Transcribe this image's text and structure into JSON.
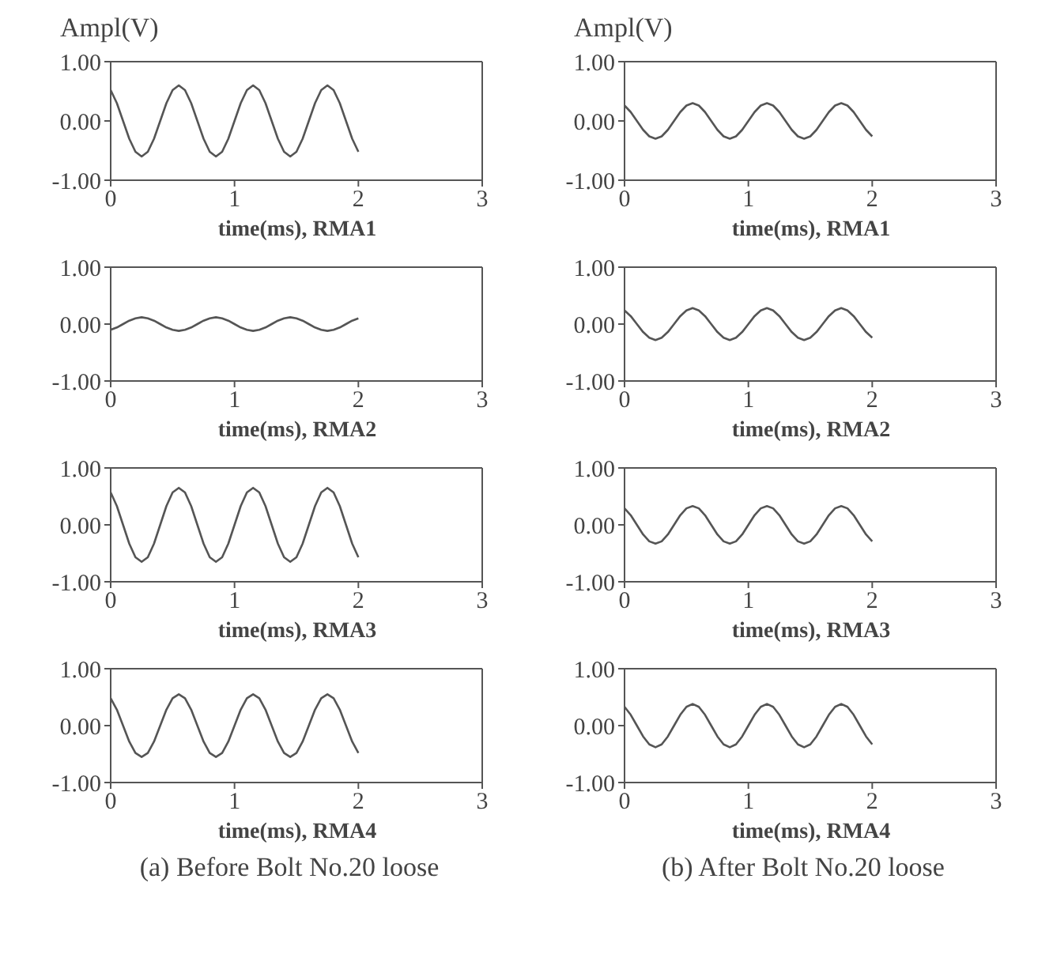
{
  "chart_data": [
    {
      "type": "line",
      "ylabel": "Ampl(V)",
      "xlabel": "time(ms), RMA1",
      "xlim": [
        0,
        3
      ],
      "xticks": [
        0,
        1,
        2,
        3
      ],
      "ylim": [
        -1,
        1
      ],
      "yticks": [
        {
          "value": -1,
          "label": "-1.00"
        },
        {
          "value": 0,
          "label": "0.00"
        },
        {
          "value": 1,
          "label": "1.00"
        }
      ],
      "legend": false,
      "x": [
        0,
        0.05,
        0.1,
        0.15,
        0.2,
        0.25,
        0.3,
        0.35,
        0.4,
        0.45,
        0.5,
        0.55,
        0.6,
        0.65,
        0.7,
        0.75,
        0.8,
        0.85,
        0.9,
        0.95,
        1,
        1.05,
        1.1,
        1.15,
        1.2,
        1.25,
        1.3,
        1.35,
        1.4,
        1.45,
        1.5,
        1.55,
        1.6,
        1.65,
        1.7,
        1.75,
        1.8,
        1.85,
        1.9,
        1.95,
        2
      ],
      "series": [
        {
          "color": "#555555",
          "values": [
            0.52,
            0.3,
            0,
            -0.3,
            -0.52,
            -0.6,
            -0.52,
            -0.3,
            0,
            0.3,
            0.52,
            0.6,
            0.52,
            0.3,
            0,
            -0.3,
            -0.52,
            -0.6,
            -0.52,
            -0.3,
            0,
            0.3,
            0.52,
            0.6,
            0.52,
            0.3,
            0,
            -0.3,
            -0.52,
            -0.6,
            -0.52,
            -0.3,
            0,
            0.3,
            0.52,
            0.6,
            0.52,
            0.3,
            0,
            -0.3,
            -0.52
          ]
        }
      ]
    },
    {
      "type": "line",
      "ylabel": "Ampl(V)",
      "xlabel": "time(ms), RMA1",
      "xlim": [
        0,
        3
      ],
      "xticks": [
        0,
        1,
        2,
        3
      ],
      "ylim": [
        -1,
        1
      ],
      "yticks": [
        {
          "value": -1,
          "label": "-1.00"
        },
        {
          "value": 0,
          "label": "0.00"
        },
        {
          "value": 1,
          "label": "1.00"
        }
      ],
      "legend": false,
      "x": [
        0,
        0.05,
        0.1,
        0.15,
        0.2,
        0.25,
        0.3,
        0.35,
        0.4,
        0.45,
        0.5,
        0.55,
        0.6,
        0.65,
        0.7,
        0.75,
        0.8,
        0.85,
        0.9,
        0.95,
        1,
        1.05,
        1.1,
        1.15,
        1.2,
        1.25,
        1.3,
        1.35,
        1.4,
        1.45,
        1.5,
        1.55,
        1.6,
        1.65,
        1.7,
        1.75,
        1.8,
        1.85,
        1.9,
        1.95,
        2
      ],
      "series": [
        {
          "color": "#555555",
          "values": [
            0.26,
            0.15,
            0,
            -0.15,
            -0.26,
            -0.3,
            -0.26,
            -0.15,
            0,
            0.15,
            0.26,
            0.3,
            0.26,
            0.15,
            0,
            -0.15,
            -0.26,
            -0.3,
            -0.26,
            -0.15,
            0,
            0.15,
            0.26,
            0.3,
            0.26,
            0.15,
            0,
            -0.15,
            -0.26,
            -0.3,
            -0.26,
            -0.15,
            0,
            0.15,
            0.26,
            0.3,
            0.26,
            0.15,
            0,
            -0.15,
            -0.26
          ]
        }
      ]
    },
    {
      "type": "line",
      "xlabel": "time(ms), RMA2",
      "xlim": [
        0,
        3
      ],
      "xticks": [
        0,
        1,
        2,
        3
      ],
      "ylim": [
        -1,
        1
      ],
      "yticks": [
        {
          "value": -1,
          "label": "-1.00"
        },
        {
          "value": 0,
          "label": "0.00"
        },
        {
          "value": 1,
          "label": "1.00"
        }
      ],
      "legend": false,
      "x": [
        0,
        0.05,
        0.1,
        0.15,
        0.2,
        0.25,
        0.3,
        0.35,
        0.4,
        0.45,
        0.5,
        0.55,
        0.6,
        0.65,
        0.7,
        0.75,
        0.8,
        0.85,
        0.9,
        0.95,
        1,
        1.05,
        1.1,
        1.15,
        1.2,
        1.25,
        1.3,
        1.35,
        1.4,
        1.45,
        1.5,
        1.55,
        1.6,
        1.65,
        1.7,
        1.75,
        1.8,
        1.85,
        1.9,
        1.95,
        2
      ],
      "series": [
        {
          "color": "#555555",
          "values": [
            -0.1,
            -0.06,
            0,
            0.06,
            0.1,
            0.12,
            0.1,
            0.06,
            0,
            -0.06,
            -0.1,
            -0.12,
            -0.1,
            -0.06,
            0,
            0.06,
            0.1,
            0.12,
            0.1,
            0.06,
            0,
            -0.06,
            -0.1,
            -0.12,
            -0.1,
            -0.06,
            0,
            0.06,
            0.1,
            0.12,
            0.1,
            0.06,
            0,
            -0.06,
            -0.1,
            -0.12,
            -0.1,
            -0.06,
            0,
            0.06,
            0.1
          ]
        }
      ]
    },
    {
      "type": "line",
      "xlabel": "time(ms), RMA2",
      "xlim": [
        0,
        3
      ],
      "xticks": [
        0,
        1,
        2,
        3
      ],
      "ylim": [
        -1,
        1
      ],
      "yticks": [
        {
          "value": -1,
          "label": "-1.00"
        },
        {
          "value": 0,
          "label": "0.00"
        },
        {
          "value": 1,
          "label": "1.00"
        }
      ],
      "legend": false,
      "x": [
        0,
        0.05,
        0.1,
        0.15,
        0.2,
        0.25,
        0.3,
        0.35,
        0.4,
        0.45,
        0.5,
        0.55,
        0.6,
        0.65,
        0.7,
        0.75,
        0.8,
        0.85,
        0.9,
        0.95,
        1,
        1.05,
        1.1,
        1.15,
        1.2,
        1.25,
        1.3,
        1.35,
        1.4,
        1.45,
        1.5,
        1.55,
        1.6,
        1.65,
        1.7,
        1.75,
        1.8,
        1.85,
        1.9,
        1.95,
        2
      ],
      "series": [
        {
          "color": "#555555",
          "values": [
            0.24,
            0.14,
            0,
            -0.14,
            -0.24,
            -0.28,
            -0.24,
            -0.14,
            0,
            0.14,
            0.24,
            0.28,
            0.24,
            0.14,
            0,
            -0.14,
            -0.24,
            -0.28,
            -0.24,
            -0.14,
            0,
            0.14,
            0.24,
            0.28,
            0.24,
            0.14,
            0,
            -0.14,
            -0.24,
            -0.28,
            -0.24,
            -0.14,
            0,
            0.14,
            0.24,
            0.28,
            0.24,
            0.14,
            0,
            -0.14,
            -0.24
          ]
        }
      ]
    },
    {
      "type": "line",
      "xlabel": "time(ms), RMA3",
      "xlim": [
        0,
        3
      ],
      "xticks": [
        0,
        1,
        2,
        3
      ],
      "ylim": [
        -1,
        1
      ],
      "yticks": [
        {
          "value": -1,
          "label": "-1.00"
        },
        {
          "value": 0,
          "label": "0.00"
        },
        {
          "value": 1,
          "label": "1.00"
        }
      ],
      "legend": false,
      "x": [
        0,
        0.05,
        0.1,
        0.15,
        0.2,
        0.25,
        0.3,
        0.35,
        0.4,
        0.45,
        0.5,
        0.55,
        0.6,
        0.65,
        0.7,
        0.75,
        0.8,
        0.85,
        0.9,
        0.95,
        1,
        1.05,
        1.1,
        1.15,
        1.2,
        1.25,
        1.3,
        1.35,
        1.4,
        1.45,
        1.5,
        1.55,
        1.6,
        1.65,
        1.7,
        1.75,
        1.8,
        1.85,
        1.9,
        1.95,
        2
      ],
      "series": [
        {
          "color": "#555555",
          "values": [
            0.57,
            0.33,
            0,
            -0.33,
            -0.57,
            -0.65,
            -0.57,
            -0.33,
            0,
            0.33,
            0.57,
            0.65,
            0.57,
            0.33,
            0,
            -0.33,
            -0.57,
            -0.65,
            -0.57,
            -0.33,
            0,
            0.33,
            0.57,
            0.65,
            0.57,
            0.33,
            0,
            -0.33,
            -0.57,
            -0.65,
            -0.57,
            -0.33,
            0,
            0.33,
            0.57,
            0.65,
            0.57,
            0.33,
            0,
            -0.33,
            -0.57
          ]
        }
      ]
    },
    {
      "type": "line",
      "xlabel": "time(ms), RMA3",
      "xlim": [
        0,
        3
      ],
      "xticks": [
        0,
        1,
        2,
        3
      ],
      "ylim": [
        -1,
        1
      ],
      "yticks": [
        {
          "value": -1,
          "label": "-1.00"
        },
        {
          "value": 0,
          "label": "0.00"
        },
        {
          "value": 1,
          "label": "1.00"
        }
      ],
      "legend": false,
      "x": [
        0,
        0.05,
        0.1,
        0.15,
        0.2,
        0.25,
        0.3,
        0.35,
        0.4,
        0.45,
        0.5,
        0.55,
        0.6,
        0.65,
        0.7,
        0.75,
        0.8,
        0.85,
        0.9,
        0.95,
        1,
        1.05,
        1.1,
        1.15,
        1.2,
        1.25,
        1.3,
        1.35,
        1.4,
        1.45,
        1.5,
        1.55,
        1.6,
        1.65,
        1.7,
        1.75,
        1.8,
        1.85,
        1.9,
        1.95,
        2
      ],
      "series": [
        {
          "color": "#555555",
          "values": [
            0.29,
            0.17,
            0,
            -0.17,
            -0.29,
            -0.33,
            -0.29,
            -0.17,
            0,
            0.17,
            0.29,
            0.33,
            0.29,
            0.17,
            0,
            -0.17,
            -0.29,
            -0.33,
            -0.29,
            -0.17,
            0,
            0.17,
            0.29,
            0.33,
            0.29,
            0.17,
            0,
            -0.17,
            -0.29,
            -0.33,
            -0.29,
            -0.17,
            0,
            0.17,
            0.29,
            0.33,
            0.29,
            0.17,
            0,
            -0.17,
            -0.29
          ]
        }
      ]
    },
    {
      "type": "line",
      "xlabel": "time(ms), RMA4",
      "xlim": [
        0,
        3
      ],
      "xticks": [
        0,
        1,
        2,
        3
      ],
      "ylim": [
        -1,
        1
      ],
      "yticks": [
        {
          "value": -1,
          "label": "-1.00"
        },
        {
          "value": 0,
          "label": "0.00"
        },
        {
          "value": 1,
          "label": "1.00"
        }
      ],
      "legend": false,
      "annotations": [
        "(a) Before Bolt No.20 loose"
      ],
      "x": [
        0,
        0.05,
        0.1,
        0.15,
        0.2,
        0.25,
        0.3,
        0.35,
        0.4,
        0.45,
        0.5,
        0.55,
        0.6,
        0.65,
        0.7,
        0.75,
        0.8,
        0.85,
        0.9,
        0.95,
        1,
        1.05,
        1.1,
        1.15,
        1.2,
        1.25,
        1.3,
        1.35,
        1.4,
        1.45,
        1.5,
        1.55,
        1.6,
        1.65,
        1.7,
        1.75,
        1.8,
        1.85,
        1.9,
        1.95,
        2
      ],
      "series": [
        {
          "color": "#555555",
          "values": [
            0.48,
            0.28,
            0,
            -0.28,
            -0.48,
            -0.55,
            -0.48,
            -0.28,
            0,
            0.28,
            0.48,
            0.55,
            0.48,
            0.28,
            0,
            -0.28,
            -0.48,
            -0.55,
            -0.48,
            -0.28,
            0,
            0.28,
            0.48,
            0.55,
            0.48,
            0.28,
            0,
            -0.28,
            -0.48,
            -0.55,
            -0.48,
            -0.28,
            0,
            0.28,
            0.48,
            0.55,
            0.48,
            0.28,
            0,
            -0.28,
            -0.48
          ]
        }
      ]
    },
    {
      "type": "line",
      "xlabel": "time(ms), RMA4",
      "xlim": [
        0,
        3
      ],
      "xticks": [
        0,
        1,
        2,
        3
      ],
      "ylim": [
        -1,
        1
      ],
      "yticks": [
        {
          "value": -1,
          "label": "-1.00"
        },
        {
          "value": 0,
          "label": "0.00"
        },
        {
          "value": 1,
          "label": "1.00"
        }
      ],
      "legend": false,
      "annotations": [
        "(b) After Bolt No.20 loose"
      ],
      "x": [
        0,
        0.05,
        0.1,
        0.15,
        0.2,
        0.25,
        0.3,
        0.35,
        0.4,
        0.45,
        0.5,
        0.55,
        0.6,
        0.65,
        0.7,
        0.75,
        0.8,
        0.85,
        0.9,
        0.95,
        1,
        1.05,
        1.1,
        1.15,
        1.2,
        1.25,
        1.3,
        1.35,
        1.4,
        1.45,
        1.5,
        1.55,
        1.6,
        1.65,
        1.7,
        1.75,
        1.8,
        1.85,
        1.9,
        1.95,
        2
      ],
      "series": [
        {
          "color": "#555555",
          "values": [
            0.33,
            0.19,
            0,
            -0.19,
            -0.33,
            -0.38,
            -0.33,
            -0.19,
            0,
            0.19,
            0.33,
            0.38,
            0.33,
            0.19,
            0,
            -0.19,
            -0.33,
            -0.38,
            -0.33,
            -0.19,
            0,
            0.19,
            0.33,
            0.38,
            0.33,
            0.19,
            0,
            -0.19,
            -0.33,
            -0.38,
            -0.33,
            -0.19,
            0,
            0.19,
            0.33,
            0.38,
            0.33,
            0.19,
            0,
            -0.19,
            -0.33
          ]
        }
      ]
    }
  ]
}
